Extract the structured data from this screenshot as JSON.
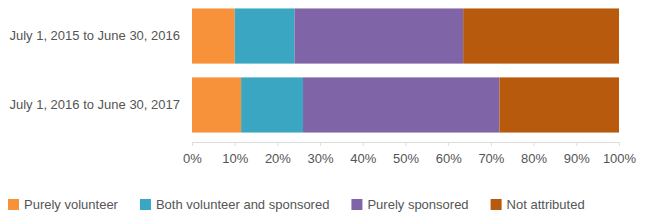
{
  "chart_data": {
    "type": "bar",
    "orientation": "horizontal",
    "stacked": true,
    "grid": false,
    "legend": "bottom",
    "categories": [
      "July 1, 2015 to June 30, 2016",
      "July 1, 2016 to June 30, 2017"
    ],
    "series": [
      {
        "name": "Purely volunteer",
        "color": "#f7923a",
        "values": [
          10,
          11.5
        ]
      },
      {
        "name": "Both volunteer and sponsored",
        "color": "#3aa6c1",
        "values": [
          14,
          14.5
        ]
      },
      {
        "name": "Purely sponsored",
        "color": "#8064a8",
        "values": [
          39.5,
          46
        ]
      },
      {
        "name": "Not attributed",
        "color": "#b85a0d",
        "values": [
          36.5,
          28
        ]
      }
    ],
    "xlim": [
      0,
      100
    ],
    "xticks": [
      {
        "value": 0,
        "label": "0%"
      },
      {
        "value": 10,
        "label": "10%"
      },
      {
        "value": 20,
        "label": "20%"
      },
      {
        "value": 30,
        "label": "30%"
      },
      {
        "value": 40,
        "label": "40%"
      },
      {
        "value": 50,
        "label": "50%"
      },
      {
        "value": 60,
        "label": "60%"
      },
      {
        "value": 70,
        "label": "70%"
      },
      {
        "value": 80,
        "label": "80%"
      },
      {
        "value": 90,
        "label": "90%"
      },
      {
        "value": 100,
        "label": "100%"
      }
    ]
  }
}
